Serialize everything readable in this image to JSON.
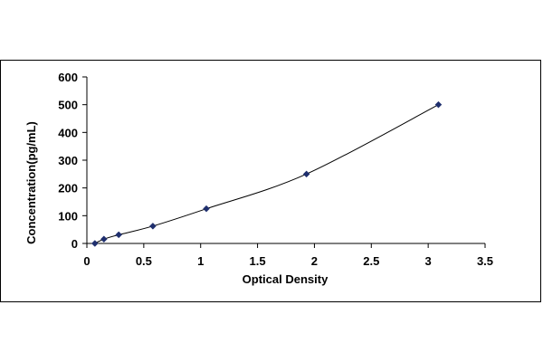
{
  "chart_data": {
    "type": "scatter",
    "title": "",
    "xlabel": "Optical Density",
    "ylabel": "Concentration(pg/mL)",
    "xlim": [
      0,
      3.5
    ],
    "ylim": [
      0,
      600
    ],
    "x_ticks": [
      "0",
      "0.5",
      "1",
      "1.5",
      "2",
      "2.5",
      "3",
      "3.5"
    ],
    "y_ticks": [
      "0",
      "100",
      "200",
      "300",
      "400",
      "500",
      "600"
    ],
    "grid": false,
    "legend": "none",
    "series": [
      {
        "points": [
          {
            "x": 0.07,
            "y": 0
          },
          {
            "x": 0.15,
            "y": 15.6
          },
          {
            "x": 0.28,
            "y": 31.2
          },
          {
            "x": 0.58,
            "y": 62.5
          },
          {
            "x": 1.05,
            "y": 125
          },
          {
            "x": 1.93,
            "y": 250
          },
          {
            "x": 3.09,
            "y": 500
          }
        ],
        "marker": "diamond",
        "marker_color": "#1f2f6e",
        "line": "smooth",
        "line_color": "#000000"
      }
    ]
  }
}
